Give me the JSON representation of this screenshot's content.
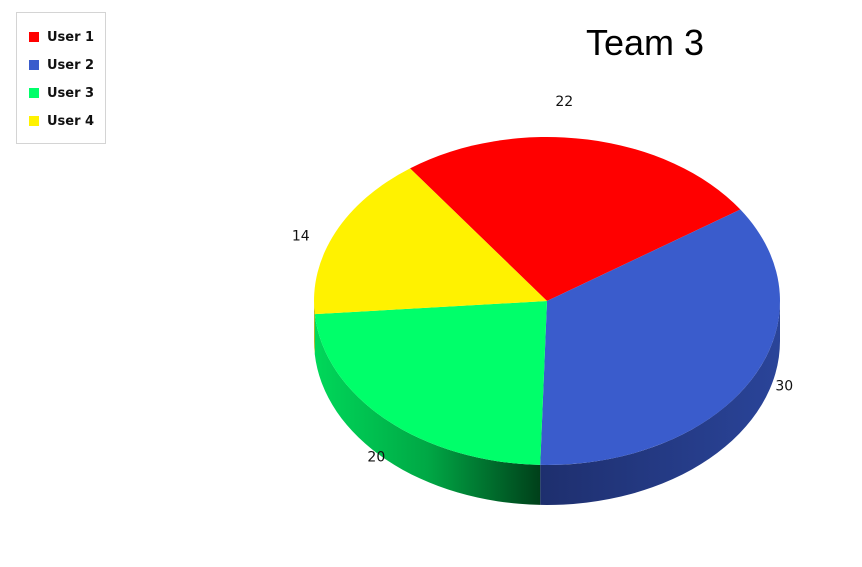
{
  "chart_data": {
    "type": "pie",
    "title": "Team 3",
    "series": [
      {
        "name": "User 1",
        "value": 22,
        "color": "#ff0000"
      },
      {
        "name": "User 2",
        "value": 30,
        "color": "#3a5ccc"
      },
      {
        "name": "User 3",
        "value": 20,
        "color": "#00ff6a"
      },
      {
        "name": "User 4",
        "value": 14,
        "color": "#fff200"
      }
    ],
    "legend_position": "top-left",
    "style": "3d"
  }
}
